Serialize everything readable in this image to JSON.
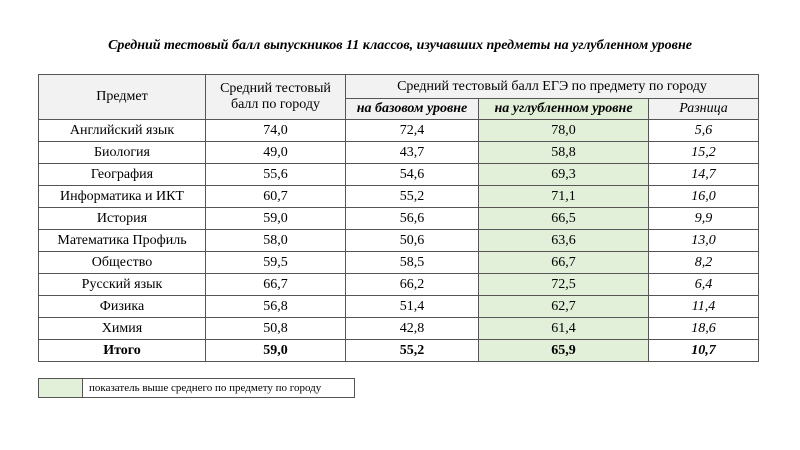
{
  "title": "Средний тестовый балл выпускников 11 классов, изучавших предметы на углубленном уровне",
  "table": {
    "header": {
      "subject": "Предмет",
      "city_avg": "Средний тестовый балл по городу",
      "ege_group": "Средний тестовый балл ЕГЭ по предмету по городу",
      "basic": "на базовом уровне",
      "advanced": "на углубленном уровне",
      "diff": "Разница"
    },
    "rows": [
      [
        "Английский язык",
        "74,0",
        "72,4",
        "78,0",
        "5,6"
      ],
      [
        "Биология",
        "49,0",
        "43,7",
        "58,8",
        "15,2"
      ],
      [
        "География",
        "55,6",
        "54,6",
        "69,3",
        "14,7"
      ],
      [
        "Информатика и ИКТ",
        "60,7",
        "55,2",
        "71,1",
        "16,0"
      ],
      [
        "История",
        "59,0",
        "56,6",
        "66,5",
        "9,9"
      ],
      [
        "Математика Профиль",
        "58,0",
        "50,6",
        "63,6",
        "13,0"
      ],
      [
        "Общество",
        "59,5",
        "58,5",
        "66,7",
        "8,2"
      ],
      [
        "Русский язык",
        "66,7",
        "66,2",
        "72,5",
        "6,4"
      ],
      [
        "Физика",
        "56,8",
        "51,4",
        "62,7",
        "11,4"
      ],
      [
        "Химия",
        "50,8",
        "42,8",
        "61,4",
        "18,6"
      ]
    ],
    "total": [
      "Итого",
      "59,0",
      "55,2",
      "65,9",
      "10,7"
    ]
  },
  "legend": "показатель выше среднего по предмету по городу"
}
